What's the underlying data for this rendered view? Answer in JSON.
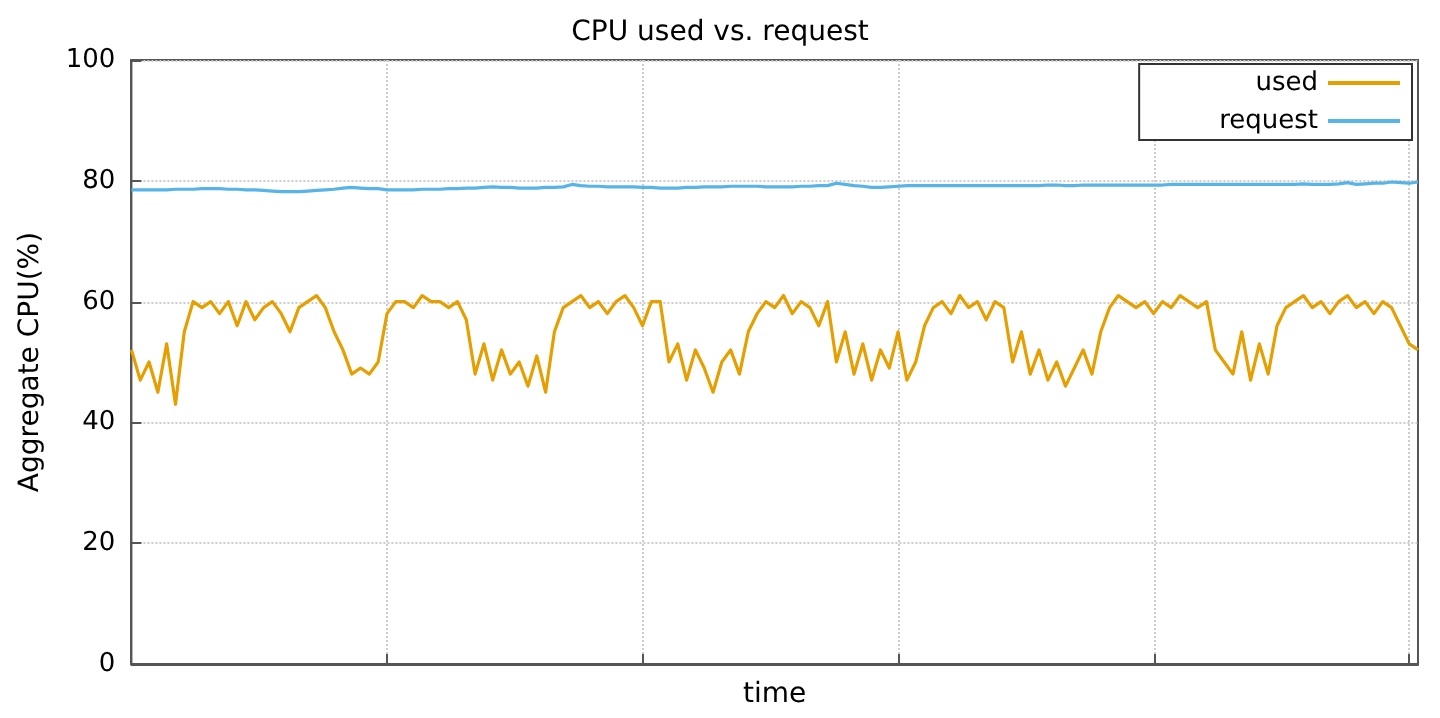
{
  "chart_data": {
    "type": "line",
    "title": "CPU used vs. request",
    "xlabel": "time",
    "ylabel": "Aggregate CPU(%)",
    "categories": [
      null,
      null,
      null,
      null,
      null,
      null,
      null,
      null,
      null,
      null,
      null,
      null,
      null,
      null,
      null,
      null,
      null,
      null,
      null,
      null,
      null,
      null,
      null,
      null,
      null,
      null,
      null,
      null,
      null,
      null,
      null,
      null,
      null,
      null,
      null,
      null,
      null,
      null,
      null,
      null,
      null,
      null,
      null,
      null,
      null,
      null,
      null,
      null,
      null,
      null,
      null,
      null,
      null,
      null,
      null,
      null,
      null,
      null,
      null,
      null,
      null,
      null,
      null,
      null,
      null,
      null,
      null,
      null,
      null,
      null,
      null,
      null,
      null,
      null,
      null,
      null,
      null,
      null,
      null,
      null,
      null,
      null,
      null,
      null,
      null,
      null,
      null,
      null,
      null,
      null,
      null,
      null,
      null,
      null,
      null,
      null,
      null,
      null,
      null,
      null,
      null,
      null,
      null,
      null,
      null,
      null,
      null,
      null,
      null,
      null,
      null,
      null,
      null,
      null,
      null,
      null,
      null,
      null,
      null,
      null,
      null,
      null,
      null,
      null,
      null,
      null,
      null,
      null,
      null,
      null,
      null,
      null,
      null,
      null,
      null,
      null,
      null,
      null,
      null,
      null,
      null,
      null,
      null,
      null,
      null,
      null,
      null
    ],
    "series": [
      {
        "name": "used",
        "color": "#e69f00",
        "values": [
          52,
          47,
          50,
          45,
          53,
          43,
          55,
          60,
          59,
          60,
          58,
          60,
          56,
          60,
          57,
          59,
          60,
          58,
          55,
          59,
          60,
          61,
          59,
          55,
          52,
          48,
          49,
          48,
          50,
          58,
          60,
          60,
          59,
          61,
          60,
          60,
          59,
          60,
          57,
          48,
          53,
          47,
          52,
          48,
          50,
          46,
          51,
          45,
          55,
          59,
          60,
          61,
          59,
          60,
          58,
          60,
          61,
          59,
          56,
          60,
          60,
          50,
          53,
          47,
          52,
          49,
          45,
          50,
          52,
          48,
          55,
          58,
          60,
          59,
          61,
          58,
          60,
          59,
          56,
          60,
          50,
          55,
          48,
          53,
          47,
          52,
          49,
          55,
          47,
          50,
          56,
          59,
          60,
          58,
          61,
          59,
          60,
          57,
          60,
          59,
          50,
          55,
          48,
          52,
          47,
          50,
          46,
          49,
          52,
          48,
          55,
          59,
          61,
          60,
          59,
          60,
          58,
          60,
          59,
          61,
          60,
          59,
          60,
          52,
          50,
          48,
          55,
          47,
          53,
          48,
          56,
          59,
          60,
          61,
          59,
          60,
          58,
          60,
          61,
          59,
          60,
          58,
          60,
          59,
          56,
          53,
          52
        ]
      },
      {
        "name": "request",
        "color": "#56b4e9",
        "values": [
          78.5,
          78.5,
          78.5,
          78.5,
          78.5,
          78.6,
          78.6,
          78.6,
          78.7,
          78.7,
          78.7,
          78.6,
          78.6,
          78.5,
          78.5,
          78.4,
          78.3,
          78.2,
          78.2,
          78.2,
          78.3,
          78.4,
          78.5,
          78.6,
          78.8,
          78.9,
          78.8,
          78.7,
          78.7,
          78.5,
          78.5,
          78.5,
          78.5,
          78.6,
          78.6,
          78.6,
          78.7,
          78.7,
          78.8,
          78.8,
          78.9,
          79.0,
          78.9,
          78.9,
          78.8,
          78.8,
          78.8,
          78.9,
          78.9,
          79.0,
          79.4,
          79.2,
          79.1,
          79.1,
          79.0,
          79.0,
          79.0,
          79.0,
          78.9,
          78.9,
          78.8,
          78.8,
          78.8,
          78.9,
          78.9,
          79.0,
          79.0,
          79.0,
          79.1,
          79.1,
          79.1,
          79.1,
          79.0,
          79.0,
          79.0,
          79.0,
          79.1,
          79.1,
          79.2,
          79.2,
          79.6,
          79.4,
          79.2,
          79.1,
          78.9,
          78.9,
          79.0,
          79.1,
          79.2,
          79.2,
          79.2,
          79.2,
          79.2,
          79.2,
          79.2,
          79.2,
          79.2,
          79.2,
          79.2,
          79.2,
          79.2,
          79.2,
          79.2,
          79.2,
          79.3,
          79.3,
          79.2,
          79.2,
          79.3,
          79.3,
          79.3,
          79.3,
          79.3,
          79.3,
          79.3,
          79.3,
          79.3,
          79.3,
          79.4,
          79.4,
          79.4,
          79.4,
          79.4,
          79.4,
          79.4,
          79.4,
          79.4,
          79.4,
          79.4,
          79.4,
          79.4,
          79.4,
          79.4,
          79.5,
          79.4,
          79.4,
          79.4,
          79.5,
          79.7,
          79.4,
          79.5,
          79.6,
          79.6,
          79.8,
          79.7,
          79.6,
          79.8
        ]
      }
    ],
    "ylim": [
      0,
      100
    ],
    "yticks": [
      0,
      20,
      40,
      60,
      80,
      100
    ],
    "grid": true,
    "legend": "top right",
    "tick_labels": "y"
  }
}
